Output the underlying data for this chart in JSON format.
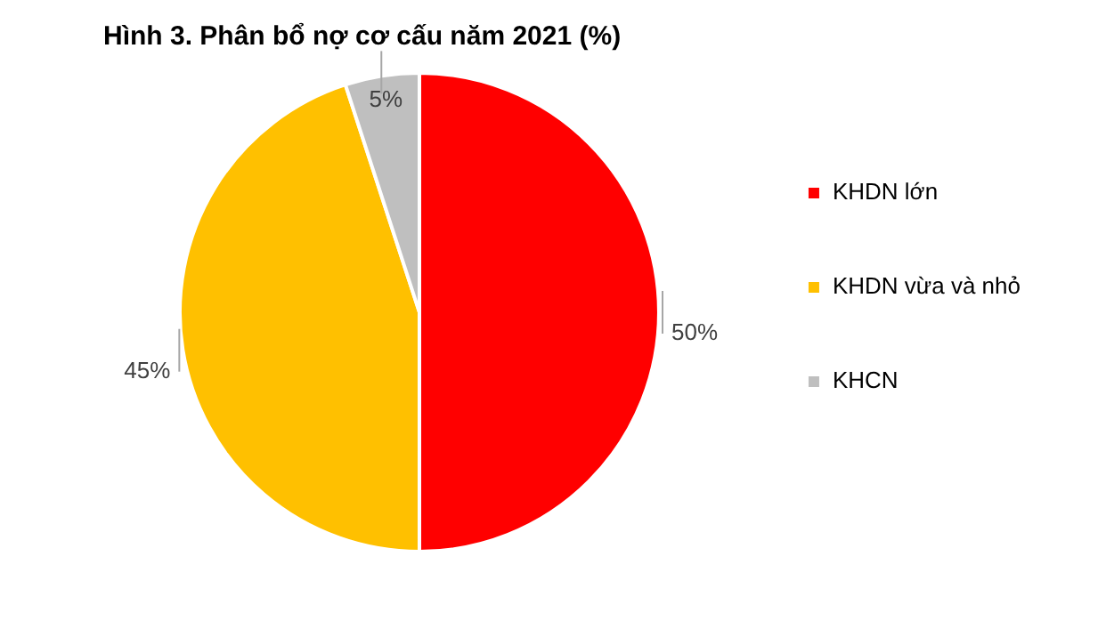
{
  "chart_data": {
    "type": "pie",
    "title": "Hình 3. Phân bổ nợ cơ cấu năm 2021 (%)",
    "categories": [
      "KHDN lớn",
      "KHDN vừa và nhỏ",
      "KHCN"
    ],
    "values": [
      50,
      45,
      5
    ],
    "colors": [
      "#ff0000",
      "#ffc000",
      "#bfbfbf"
    ],
    "value_labels": [
      "50%",
      "45%",
      "5%"
    ],
    "legend": "right"
  }
}
